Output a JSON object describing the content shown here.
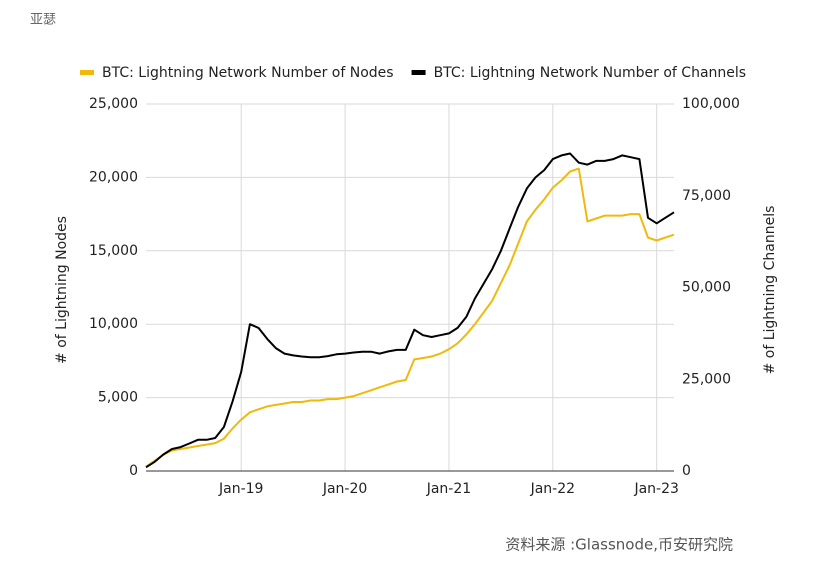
{
  "header": {
    "author": "亚瑟"
  },
  "chart_data": {
    "type": "line",
    "x": [
      "2018-02",
      "2018-03",
      "2018-04",
      "2018-05",
      "2018-06",
      "2018-07",
      "2018-08",
      "2018-09",
      "2018-10",
      "2018-11",
      "2018-12",
      "2019-01",
      "2019-02",
      "2019-03",
      "2019-04",
      "2019-05",
      "2019-06",
      "2019-07",
      "2019-08",
      "2019-09",
      "2019-10",
      "2019-11",
      "2019-12",
      "2020-01",
      "2020-02",
      "2020-03",
      "2020-04",
      "2020-05",
      "2020-06",
      "2020-07",
      "2020-08",
      "2020-09",
      "2020-10",
      "2020-11",
      "2020-12",
      "2021-01",
      "2021-02",
      "2021-03",
      "2021-04",
      "2021-05",
      "2021-06",
      "2021-07",
      "2021-08",
      "2021-09",
      "2021-10",
      "2021-11",
      "2021-12",
      "2022-01",
      "2022-02",
      "2022-03",
      "2022-04",
      "2022-05",
      "2022-06",
      "2022-07",
      "2022-08",
      "2022-09",
      "2022-10",
      "2022-11",
      "2022-12",
      "2023-01",
      "2023-02",
      "2023-03"
    ],
    "series": [
      {
        "name": "BTC: Lightning Network Number of Nodes",
        "color": "#f0b90b",
        "values": [
          300,
          700,
          1100,
          1400,
          1500,
          1600,
          1700,
          1800,
          1900,
          2200,
          2900,
          3500,
          4000,
          4200,
          4400,
          4500,
          4600,
          4700,
          4700,
          4800,
          4800,
          4900,
          4900,
          5000,
          5100,
          5300,
          5500,
          5700,
          5900,
          6100,
          6200,
          7600,
          7700,
          7800,
          8000,
          8300,
          8700,
          9300,
          10000,
          10800,
          11600,
          12800,
          14000,
          15500,
          17000,
          17800,
          18500,
          19300,
          19800,
          20400,
          20600,
          17000,
          17200,
          17400,
          17400,
          17400,
          17500,
          17500,
          15900,
          15700,
          15900,
          16100
        ]
      },
      {
        "name": "BTC: Lightning Network Number of Channels",
        "color": "#000000",
        "axis": "y2",
        "values": [
          1000,
          2500,
          4500,
          6000,
          6500,
          7500,
          8500,
          8500,
          9000,
          12000,
          19000,
          27000,
          40000,
          39000,
          36000,
          33500,
          32000,
          31500,
          31200,
          31000,
          31000,
          31300,
          31800,
          32000,
          32300,
          32500,
          32500,
          32000,
          32600,
          33000,
          33000,
          38500,
          37000,
          36500,
          37000,
          37500,
          39000,
          42000,
          47000,
          51000,
          55000,
          60000,
          66000,
          72000,
          77000,
          80000,
          82000,
          85000,
          86000,
          86500,
          84000,
          83500,
          84500,
          84500,
          85000,
          86000,
          85500,
          85000,
          69000,
          67500,
          69000,
          70500
        ]
      }
    ],
    "xlim": [
      "2018-02",
      "2023-03"
    ],
    "xticks": [
      {
        "value": "2019-01",
        "label": "Jan-19"
      },
      {
        "value": "2020-01",
        "label": "Jan-20"
      },
      {
        "value": "2021-01",
        "label": "Jan-21"
      },
      {
        "value": "2022-01",
        "label": "Jan-22"
      },
      {
        "value": "2023-01",
        "label": "Jan-23"
      }
    ],
    "ylim": [
      0,
      25000
    ],
    "yticks": [
      0,
      {
        "value": 5000,
        "label": "5,000"
      },
      {
        "value": 10000,
        "label": "10,000"
      },
      {
        "value": 15000,
        "label": "15,000"
      },
      {
        "value": 20000,
        "label": "20,000"
      },
      {
        "value": 25000,
        "label": "25,000"
      }
    ],
    "y2lim": [
      0,
      100000
    ],
    "y2ticks": [
      0,
      {
        "value": 25000,
        "label": "25,000"
      },
      {
        "value": 50000,
        "label": "50,000"
      },
      {
        "value": 75000,
        "label": "75,000"
      },
      {
        "value": 100000,
        "label": "100,000"
      }
    ],
    "ylabel": "# of Lightning Nodes",
    "y2label": "# of Lightning Channels",
    "grid": true,
    "legend": "top",
    "source": "资料来源 :Glassnode,币安研究院"
  }
}
